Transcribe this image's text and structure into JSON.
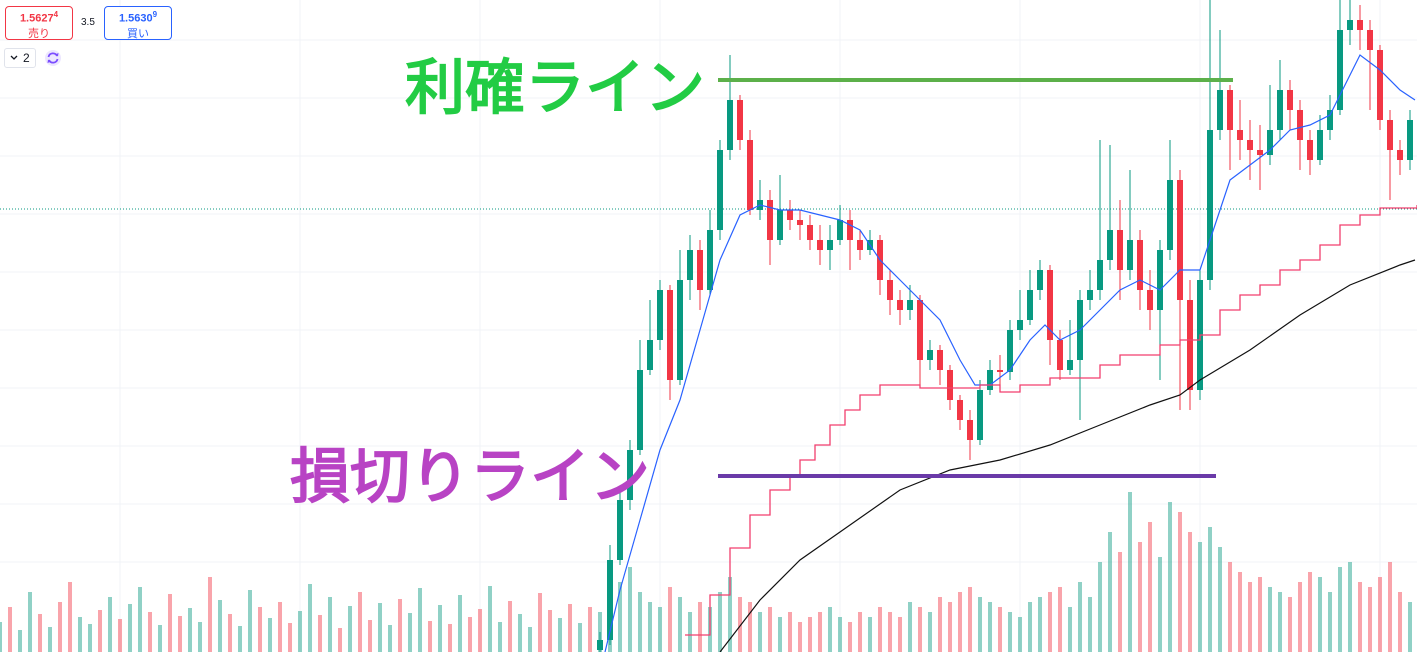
{
  "toolbar": {
    "sell_price": "1.5627",
    "sell_pip": "4",
    "sell_label": "売り",
    "spread": "3.5",
    "buy_price": "1.5630",
    "buy_pip": "9",
    "buy_label": "買い",
    "interval": "2"
  },
  "chart_data": {
    "type": "candlestick",
    "ylim": [
      1.55848,
      1.565
    ],
    "up_color": "#089981",
    "down_color": "#f23645",
    "last_price": 1.56291,
    "ohlc": [
      [
        1.5585,
        1.55868,
        1.55848,
        1.5586
      ],
      [
        1.5586,
        1.55955,
        1.55855,
        1.5594
      ],
      [
        1.5594,
        1.5601,
        1.55935,
        1.56
      ],
      [
        1.56,
        1.5606,
        1.5599,
        1.5605
      ],
      [
        1.5605,
        1.5616,
        1.56045,
        1.5613
      ],
      [
        1.5613,
        1.562,
        1.56125,
        1.5616
      ],
      [
        1.5616,
        1.5622,
        1.5615,
        1.5621
      ],
      [
        1.5621,
        1.56215,
        1.561,
        1.5612
      ],
      [
        1.5612,
        1.5625,
        1.56115,
        1.5622
      ],
      [
        1.5622,
        1.56265,
        1.562,
        1.5625
      ],
      [
        1.5625,
        1.5626,
        1.5619,
        1.5621
      ],
      [
        1.5621,
        1.5629,
        1.56205,
        1.5627
      ],
      [
        1.5627,
        1.5636,
        1.5626,
        1.5635
      ],
      [
        1.5635,
        1.56445,
        1.5634,
        1.564
      ],
      [
        1.564,
        1.56405,
        1.5635,
        1.5636
      ],
      [
        1.5636,
        1.5637,
        1.56285,
        1.5629
      ],
      [
        1.5629,
        1.5632,
        1.5628,
        1.563
      ],
      [
        1.563,
        1.5631,
        1.56235,
        1.5626
      ],
      [
        1.5626,
        1.56325,
        1.56255,
        1.5629
      ],
      [
        1.5629,
        1.563,
        1.5627,
        1.5628
      ],
      [
        1.5628,
        1.5629,
        1.5626,
        1.56275
      ],
      [
        1.56275,
        1.56285,
        1.5625,
        1.5626
      ],
      [
        1.5626,
        1.56275,
        1.56235,
        1.5625
      ],
      [
        1.5625,
        1.56275,
        1.5623,
        1.5626
      ],
      [
        1.5626,
        1.56295,
        1.56255,
        1.5628
      ],
      [
        1.5628,
        1.5629,
        1.5623,
        1.5626
      ],
      [
        1.5626,
        1.5627,
        1.5624,
        1.5625
      ],
      [
        1.5625,
        1.5627,
        1.56245,
        1.5626
      ],
      [
        1.5626,
        1.56265,
        1.56205,
        1.5622
      ],
      [
        1.5622,
        1.5623,
        1.56185,
        1.562
      ],
      [
        1.562,
        1.5621,
        1.56175,
        1.5619
      ],
      [
        1.5619,
        1.56215,
        1.5618,
        1.562
      ],
      [
        1.562,
        1.56205,
        1.56115,
        1.5614
      ],
      [
        1.5614,
        1.5616,
        1.5613,
        1.5615
      ],
      [
        1.5615,
        1.56155,
        1.56115,
        1.5613
      ],
      [
        1.5613,
        1.56135,
        1.5609,
        1.561
      ],
      [
        1.561,
        1.56105,
        1.5607,
        1.5608
      ],
      [
        1.5608,
        1.5609,
        1.5604,
        1.5606
      ],
      [
        1.5606,
        1.5612,
        1.56055,
        1.5611
      ],
      [
        1.5611,
        1.5614,
        1.56105,
        1.5613
      ],
      [
        1.5613,
        1.56145,
        1.56115,
        1.56128
      ],
      [
        1.56128,
        1.5618,
        1.5612,
        1.5617
      ],
      [
        1.5617,
        1.5621,
        1.5616,
        1.5618
      ],
      [
        1.5618,
        1.5623,
        1.56175,
        1.5621
      ],
      [
        1.5621,
        1.5624,
        1.562,
        1.5623
      ],
      [
        1.5623,
        1.56235,
        1.56135,
        1.5616
      ],
      [
        1.5616,
        1.5617,
        1.5612,
        1.5613
      ],
      [
        1.5613,
        1.5618,
        1.56125,
        1.5614
      ],
      [
        1.5614,
        1.5621,
        1.5608,
        1.562
      ],
      [
        1.562,
        1.5623,
        1.5619,
        1.5621
      ],
      [
        1.5621,
        1.5636,
        1.562,
        1.5624
      ],
      [
        1.5624,
        1.56355,
        1.5623,
        1.5627
      ],
      [
        1.5627,
        1.563,
        1.562,
        1.5623
      ],
      [
        1.5623,
        1.5633,
        1.5622,
        1.5626
      ],
      [
        1.5626,
        1.5627,
        1.5619,
        1.5621
      ],
      [
        1.5621,
        1.5623,
        1.5617,
        1.5619
      ],
      [
        1.5619,
        1.5626,
        1.5612,
        1.5625
      ],
      [
        1.5625,
        1.5636,
        1.5624,
        1.5632
      ],
      [
        1.5632,
        1.5633,
        1.5609,
        1.562
      ],
      [
        1.562,
        1.5622,
        1.5609,
        1.5611
      ],
      [
        1.5611,
        1.5623,
        1.561,
        1.5622
      ],
      [
        1.5622,
        1.565,
        1.5621,
        1.5637
      ],
      [
        1.5637,
        1.5647,
        1.5636,
        1.5641
      ],
      [
        1.5641,
        1.56415,
        1.5633,
        1.5637
      ],
      [
        1.5637,
        1.564,
        1.5634,
        1.5636
      ],
      [
        1.5636,
        1.5638,
        1.5632,
        1.5635
      ],
      [
        1.5635,
        1.56375,
        1.5631,
        1.56345
      ],
      [
        1.56345,
        1.56415,
        1.56335,
        1.5637
      ],
      [
        1.5637,
        1.5644,
        1.5636,
        1.5641
      ],
      [
        1.5641,
        1.5642,
        1.5637,
        1.5639
      ],
      [
        1.5639,
        1.564,
        1.5633,
        1.5636
      ],
      [
        1.5636,
        1.5637,
        1.56325,
        1.5634
      ],
      [
        1.5634,
        1.56385,
        1.56335,
        1.5637
      ],
      [
        1.5637,
        1.56405,
        1.5636,
        1.5639
      ],
      [
        1.5639,
        1.565,
        1.56385,
        1.5647
      ],
      [
        1.5647,
        1.565,
        1.56455,
        1.5648
      ],
      [
        1.5648,
        1.56495,
        1.5645,
        1.5647
      ],
      [
        1.5647,
        1.5648,
        1.5639,
        1.5645
      ],
      [
        1.5645,
        1.56455,
        1.5637,
        1.5638
      ],
      [
        1.5638,
        1.5639,
        1.563,
        1.5635
      ],
      [
        1.5635,
        1.5636,
        1.56325,
        1.5634
      ],
      [
        1.5634,
        1.5639,
        1.5633,
        1.5638
      ]
    ],
    "series": [
      {
        "color": "#2962ff",
        "x": [
          0.5,
          2,
          4,
          6,
          8,
          10,
          12,
          14,
          16,
          18,
          20,
          22,
          24,
          26,
          28,
          30,
          32,
          34,
          36,
          37.5,
          39,
          41,
          43,
          44.5,
          46,
          48,
          50,
          52,
          54,
          56,
          58,
          60,
          61,
          63,
          65,
          67,
          69,
          71,
          73,
          75,
          76,
          78,
          80,
          81.5
        ],
        "values": [
          1.55848,
          1.5591,
          1.5598,
          1.5605,
          1.561,
          1.5617,
          1.5624,
          1.56285,
          1.56295,
          1.5629,
          1.5629,
          1.56285,
          1.5628,
          1.5627,
          1.5624,
          1.5622,
          1.562,
          1.5618,
          1.5614,
          1.56115,
          1.56115,
          1.5613,
          1.5616,
          1.56175,
          1.5616,
          1.5617,
          1.5619,
          1.5621,
          1.5622,
          1.5621,
          1.5623,
          1.5623,
          1.5626,
          1.5632,
          1.56335,
          1.5635,
          1.5637,
          1.56375,
          1.56385,
          1.56425,
          1.56445,
          1.5643,
          1.5641,
          1.564
        ]
      },
      {
        "color": "#f23f6e",
        "step": true,
        "x": [
          8.5,
          11,
          13,
          15,
          17,
          19,
          20,
          21.5,
          23,
          24.5,
          26,
          28,
          32,
          38,
          40,
          42,
          45,
          50,
          52,
          56,
          58,
          60,
          62,
          64,
          66,
          68,
          70,
          72,
          74,
          76,
          78,
          81.7
        ],
        "values": [
          1.55865,
          1.55905,
          1.55952,
          1.55985,
          1.5601,
          1.56025,
          1.5604,
          1.56055,
          1.56075,
          1.5609,
          1.56105,
          1.56115,
          1.56112,
          1.56115,
          1.56108,
          1.56115,
          1.56122,
          1.56135,
          1.56145,
          1.56155,
          1.5616,
          1.56165,
          1.5619,
          1.56205,
          1.56215,
          1.5623,
          1.5624,
          1.56255,
          1.56275,
          1.56285,
          1.56292,
          1.56295
        ]
      },
      {
        "color": "#111111",
        "x": [
          12,
          16,
          20,
          25,
          30,
          35,
          40,
          45,
          50,
          55,
          58,
          60,
          65,
          70,
          75,
          80,
          81.5
        ],
        "values": [
          1.55848,
          1.559,
          1.5594,
          1.55975,
          1.5601,
          1.5603,
          1.5604,
          1.56055,
          1.56075,
          1.56095,
          1.56105,
          1.5612,
          1.5615,
          1.56185,
          1.56215,
          1.56235,
          1.5624
        ]
      }
    ],
    "annotations": [
      {
        "text": "利確ライン",
        "value": 1.5642,
        "x": [
          11.8,
          63.3
        ],
        "color": "#5cb04a",
        "text_color": "#22cc44"
      },
      {
        "text": "損切りライン",
        "value": 1.56024,
        "x": [
          11.8,
          61.6
        ],
        "color": "#6a3aa8",
        "text_color": "#b843c4"
      }
    ],
    "volume": {
      "values": [
        30,
        45,
        22,
        60,
        38,
        25,
        50,
        70,
        35,
        28,
        42,
        55,
        33,
        48,
        65,
        40,
        27,
        58,
        36,
        44,
        30,
        75,
        52,
        38,
        26,
        62,
        45,
        34,
        50,
        29,
        41,
        68,
        37,
        55,
        24,
        46,
        60,
        32,
        49,
        27,
        53,
        39,
        64,
        31,
        47,
        28,
        57,
        35,
        43,
        66,
        30,
        51,
        38,
        25,
        59,
        42,
        34,
        48,
        29,
        45,
        40,
        55,
        70,
        85,
        60,
        50,
        45,
        65,
        55,
        40,
        50,
        45,
        60,
        75,
        55,
        50,
        40,
        45,
        35,
        40,
        30,
        35,
        40,
        45,
        35,
        30,
        40,
        35,
        45,
        40,
        35,
        50,
        45,
        40,
        55,
        50,
        60,
        65,
        55,
        50,
        45,
        40,
        35,
        50,
        55,
        60,
        65,
        45,
        70,
        55,
        90,
        120,
        100,
        160,
        110,
        130,
        95,
        150,
        140,
        120,
        110,
        125,
        105,
        90,
        80,
        70,
        75,
        65,
        60,
        55,
        70,
        80,
        75,
        60,
        85,
        90,
        70,
        65,
        75,
        90,
        60,
        50
      ],
      "up": [
        1,
        0,
        1,
        1,
        0,
        1,
        0,
        0,
        1,
        1,
        0,
        1,
        0,
        1,
        1,
        0,
        1,
        0,
        0,
        1,
        1,
        0,
        1,
        0,
        1,
        1,
        0,
        1,
        0,
        0,
        1,
        1,
        0,
        1,
        0,
        1,
        0,
        0,
        1,
        1,
        0,
        1,
        1,
        0,
        1,
        0,
        1,
        0,
        0,
        1,
        1,
        0,
        1,
        1,
        0,
        0,
        1,
        0,
        1,
        0,
        1,
        1,
        1,
        1,
        1,
        1,
        1,
        0,
        1,
        1,
        0,
        1,
        1,
        1,
        0,
        0,
        1,
        0,
        1,
        0,
        0,
        0,
        0,
        1,
        1,
        0,
        0,
        1,
        0,
        0,
        0,
        1,
        0,
        1,
        0,
        0,
        0,
        0,
        1,
        1,
        0,
        1,
        1,
        1,
        1,
        0,
        0,
        1,
        1,
        1,
        1,
        1,
        0,
        1,
        0,
        0,
        1,
        1,
        0,
        0,
        1,
        1,
        1,
        0,
        0,
        0,
        0,
        1,
        1,
        0,
        0,
        0,
        1,
        1,
        1,
        1,
        0,
        0,
        0,
        0,
        0,
        1
      ]
    }
  }
}
